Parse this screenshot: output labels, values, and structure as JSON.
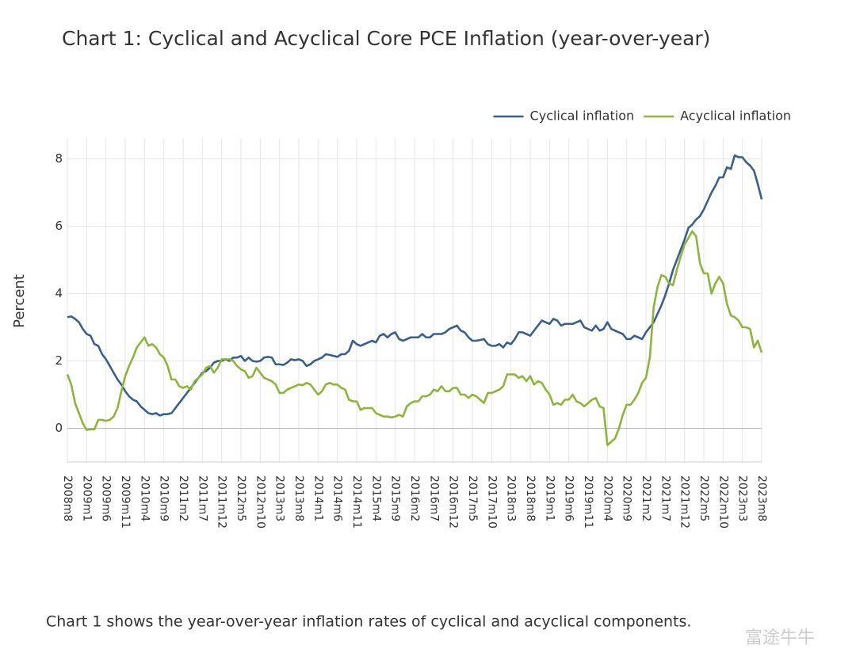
{
  "chart_data": {
    "type": "line",
    "title": "Chart 1: Cyclical and Acyclical Core PCE Inflation (year-over-year)",
    "y_label": "Percent",
    "caption": "Chart 1 shows the year-over-year inflation rates of cyclical and acyclical components.",
    "watermark": "富途牛牛",
    "categories": [
      "2008m8",
      null,
      null,
      null,
      null,
      "2009m1",
      null,
      null,
      null,
      null,
      "2009m6",
      null,
      null,
      null,
      null,
      "2009m11",
      null,
      null,
      null,
      null,
      "2010m4",
      null,
      null,
      null,
      null,
      "2010m9",
      null,
      null,
      null,
      null,
      "2011m2",
      null,
      null,
      null,
      null,
      "2011m7",
      null,
      null,
      null,
      null,
      "2011m12",
      null,
      null,
      null,
      null,
      "2012m5",
      null,
      null,
      null,
      null,
      "2012m10",
      null,
      null,
      null,
      null,
      "2013m3",
      null,
      null,
      null,
      null,
      "2013m8",
      null,
      null,
      null,
      null,
      "2014m1",
      null,
      null,
      null,
      null,
      "2014m6",
      null,
      null,
      null,
      null,
      "2014m11",
      null,
      null,
      null,
      null,
      "2015m4",
      null,
      null,
      null,
      null,
      "2015m9",
      null,
      null,
      null,
      null,
      "2016m2",
      null,
      null,
      null,
      null,
      "2016m7",
      null,
      null,
      null,
      null,
      "2016m12",
      null,
      null,
      null,
      null,
      "2017m5",
      null,
      null,
      null,
      null,
      "2017m10",
      null,
      null,
      null,
      null,
      "2018m3",
      null,
      null,
      null,
      null,
      "2018m8",
      null,
      null,
      null,
      null,
      "2019m1",
      null,
      null,
      null,
      null,
      "2019m6",
      null,
      null,
      null,
      null,
      "2019m11",
      null,
      null,
      null,
      null,
      "2020m4",
      null,
      null,
      null,
      null,
      "2020m9",
      null,
      null,
      null,
      null,
      "2021m2",
      null,
      null,
      null,
      null,
      "2021m7",
      null,
      null,
      null,
      null,
      "2021m12",
      null,
      null,
      null,
      null,
      "2022m5",
      null,
      null,
      null,
      null,
      "2022m10",
      null,
      null,
      null,
      null,
      "2023m3",
      null,
      null,
      null,
      null,
      "2023m8"
    ],
    "series": [
      {
        "name": "Cyclical inflation",
        "color": "#3a5f8a",
        "values": [
          3.3,
          3.32,
          3.25,
          3.15,
          2.95,
          2.8,
          2.75,
          2.5,
          2.45,
          2.2,
          2.05,
          1.85,
          1.65,
          1.45,
          1.3,
          1.1,
          0.95,
          0.85,
          0.8,
          0.65,
          0.55,
          0.45,
          0.42,
          0.45,
          0.38,
          0.42,
          0.42,
          0.45,
          0.6,
          0.75,
          0.9,
          1.05,
          1.2,
          1.35,
          1.5,
          1.65,
          1.7,
          1.8,
          1.95,
          2.0,
          2.0,
          2.05,
          2.0,
          2.1,
          2.1,
          2.15,
          2.0,
          2.1,
          2.0,
          1.98,
          2.0,
          2.1,
          2.12,
          2.1,
          1.9,
          1.9,
          1.88,
          1.95,
          2.05,
          2.02,
          2.05,
          2.0,
          1.85,
          1.9,
          2.0,
          2.05,
          2.1,
          2.2,
          2.18,
          2.15,
          2.12,
          2.2,
          2.2,
          2.3,
          2.6,
          2.5,
          2.45,
          2.5,
          2.55,
          2.6,
          2.55,
          2.75,
          2.8,
          2.7,
          2.8,
          2.85,
          2.65,
          2.6,
          2.65,
          2.7,
          2.7,
          2.7,
          2.8,
          2.7,
          2.7,
          2.8,
          2.8,
          2.8,
          2.85,
          2.95,
          3.0,
          3.05,
          2.9,
          2.85,
          2.7,
          2.6,
          2.6,
          2.62,
          2.65,
          2.5,
          2.45,
          2.45,
          2.5,
          2.4,
          2.55,
          2.5,
          2.65,
          2.85,
          2.85,
          2.8,
          2.75,
          2.9,
          3.05,
          3.2,
          3.15,
          3.1,
          3.25,
          3.2,
          3.05,
          3.1,
          3.1,
          3.1,
          3.15,
          3.2,
          3.0,
          2.95,
          2.9,
          3.05,
          2.9,
          2.95,
          3.15,
          2.95,
          2.9,
          2.85,
          2.8,
          2.65,
          2.65,
          2.75,
          2.7,
          2.65,
          2.85,
          3.0,
          3.15,
          3.4,
          3.65,
          3.95,
          4.3,
          4.7,
          5.0,
          5.3,
          5.6,
          5.95,
          6.05,
          6.2,
          6.3,
          6.5,
          6.75,
          7.0,
          7.2,
          7.45,
          7.45,
          7.75,
          7.7,
          8.1,
          8.05,
          8.05,
          7.9,
          7.8,
          7.65,
          7.25,
          6.8
        ]
      },
      {
        "name": "Acyclical inflation",
        "color": "#8db43e",
        "values": [
          1.6,
          1.3,
          0.75,
          0.45,
          0.15,
          -0.05,
          -0.03,
          -0.03,
          0.25,
          0.25,
          0.22,
          0.25,
          0.35,
          0.6,
          1.1,
          1.55,
          1.85,
          2.1,
          2.4,
          2.55,
          2.7,
          2.45,
          2.5,
          2.4,
          2.2,
          2.1,
          1.85,
          1.45,
          1.45,
          1.25,
          1.2,
          1.25,
          1.15,
          1.4,
          1.5,
          1.6,
          1.8,
          1.85,
          1.65,
          1.8,
          2.05,
          2.05,
          2.05,
          2.0,
          1.85,
          1.75,
          1.7,
          1.5,
          1.55,
          1.8,
          1.65,
          1.5,
          1.45,
          1.4,
          1.3,
          1.05,
          1.05,
          1.15,
          1.2,
          1.25,
          1.3,
          1.28,
          1.35,
          1.3,
          1.15,
          1.0,
          1.1,
          1.3,
          1.35,
          1.3,
          1.3,
          1.2,
          1.15,
          0.85,
          0.8,
          0.8,
          0.55,
          0.6,
          0.6,
          0.6,
          0.45,
          0.4,
          0.35,
          0.35,
          0.32,
          0.35,
          0.4,
          0.35,
          0.65,
          0.75,
          0.8,
          0.8,
          0.95,
          0.95,
          1.0,
          1.15,
          1.1,
          1.25,
          1.1,
          1.1,
          1.2,
          1.2,
          1.0,
          1.0,
          0.9,
          1.0,
          0.95,
          0.85,
          0.75,
          1.05,
          1.05,
          1.1,
          1.15,
          1.25,
          1.6,
          1.6,
          1.6,
          1.5,
          1.55,
          1.4,
          1.55,
          1.3,
          1.4,
          1.35,
          1.15,
          1.0,
          0.7,
          0.75,
          0.7,
          0.85,
          0.85,
          1.0,
          0.8,
          0.75,
          0.65,
          0.75,
          0.85,
          0.9,
          0.65,
          0.6,
          -0.5,
          -0.4,
          -0.3,
          0.0,
          0.4,
          0.7,
          0.7,
          0.85,
          1.05,
          1.35,
          1.5,
          2.1,
          3.6,
          4.2,
          4.55,
          4.5,
          4.3,
          4.25,
          4.7,
          5.1,
          5.45,
          5.65,
          5.85,
          5.7,
          4.9,
          4.6,
          4.6,
          4.0,
          4.3,
          4.5,
          4.3,
          3.7,
          3.35,
          3.3,
          3.2,
          3.0,
          3.0,
          2.95,
          2.4,
          2.6,
          2.25
        ]
      }
    ],
    "ylim": [
      -1,
      8.6
    ],
    "yticks": [
      0,
      2,
      4,
      6,
      8
    ],
    "grid": true,
    "legend": "top-right"
  }
}
